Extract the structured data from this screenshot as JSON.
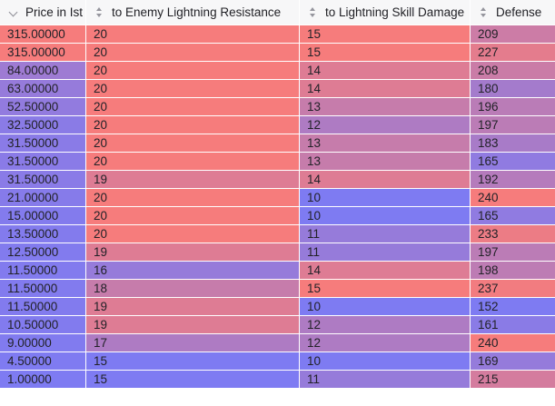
{
  "table": {
    "columns": [
      {
        "id": "price",
        "label": "Price in Ist",
        "icon": "chevron-down-icon"
      },
      {
        "id": "enemy_lightning_resistance",
        "label": "to Enemy Lightning Resistance",
        "icon": "sort-icon"
      },
      {
        "id": "lightning_skill_damage",
        "label": "to Lightning Skill Damage",
        "icon": "sort-icon"
      },
      {
        "id": "defense",
        "label": "Defense",
        "icon": "sort-icon"
      }
    ],
    "heatmap": {
      "low_color": "#7E7BF2",
      "high_color": "#F67C7C"
    },
    "rows": [
      [
        "315.00000",
        "20",
        "15",
        "209"
      ],
      [
        "315.00000",
        "20",
        "15",
        "227"
      ],
      [
        "84.00000",
        "20",
        "14",
        "208"
      ],
      [
        "63.00000",
        "20",
        "14",
        "180"
      ],
      [
        "52.50000",
        "20",
        "13",
        "196"
      ],
      [
        "32.50000",
        "20",
        "12",
        "197"
      ],
      [
        "31.50000",
        "20",
        "13",
        "183"
      ],
      [
        "31.50000",
        "20",
        "13",
        "165"
      ],
      [
        "31.50000",
        "19",
        "14",
        "192"
      ],
      [
        "21.00000",
        "20",
        "10",
        "240"
      ],
      [
        "15.00000",
        "20",
        "10",
        "165"
      ],
      [
        "13.50000",
        "20",
        "11",
        "233"
      ],
      [
        "12.50000",
        "19",
        "11",
        "197"
      ],
      [
        "11.50000",
        "16",
        "14",
        "198"
      ],
      [
        "11.50000",
        "18",
        "15",
        "237"
      ],
      [
        "11.50000",
        "19",
        "10",
        "152"
      ],
      [
        "10.50000",
        "19",
        "12",
        "161"
      ],
      [
        "9.00000",
        "17",
        "12",
        "240"
      ],
      [
        "4.50000",
        "15",
        "10",
        "169"
      ],
      [
        "1.00000",
        "15",
        "11",
        "215"
      ]
    ]
  }
}
